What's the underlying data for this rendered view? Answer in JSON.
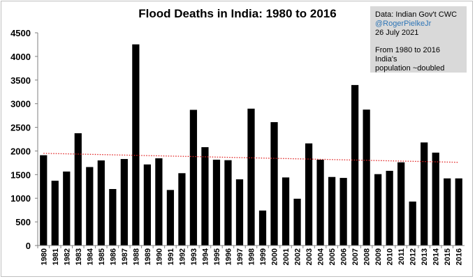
{
  "chart_data": {
    "type": "bar",
    "title": "Flood Deaths in India: 1980 to 2016",
    "xlabel": "",
    "ylabel": "",
    "ylim": [
      0,
      4500
    ],
    "yticks": [
      0,
      500,
      1000,
      1500,
      2000,
      2500,
      3000,
      3500,
      4000,
      4500
    ],
    "grid": false,
    "bar_color": "#000000",
    "trendline": {
      "style": "dotted",
      "color": "#e02020",
      "start": 1950,
      "end": 1760
    },
    "categories": [
      "1980",
      "1981",
      "1982",
      "1983",
      "1984",
      "1985",
      "1986",
      "1987",
      "1988",
      "1989",
      "1990",
      "1991",
      "1992",
      "1993",
      "1994",
      "1995",
      "1996",
      "1997",
      "1998",
      "1999",
      "2000",
      "2001",
      "2002",
      "2003",
      "2004",
      "2005",
      "2006",
      "2007",
      "2008",
      "2009",
      "2010",
      "2011",
      "2012",
      "2013",
      "2014",
      "2015",
      "2016"
    ],
    "values": [
      1910,
      1370,
      1565,
      2375,
      1660,
      1800,
      1195,
      1830,
      4255,
      1715,
      1845,
      1175,
      1530,
      2870,
      2080,
      1815,
      1805,
      1400,
      2895,
      740,
      2610,
      1440,
      990,
      2160,
      1815,
      1450,
      1430,
      3395,
      2875,
      1510,
      1580,
      1760,
      930,
      2180,
      1965,
      1420,
      1420
    ]
  },
  "info_box": {
    "source": "Data: Indian Gov't CWC",
    "handle": "@RogerPielkeJr",
    "date": "26 July 2021",
    "note_line1": "From 1980 to 2016 India's",
    "note_line2": "population ~doubled"
  }
}
